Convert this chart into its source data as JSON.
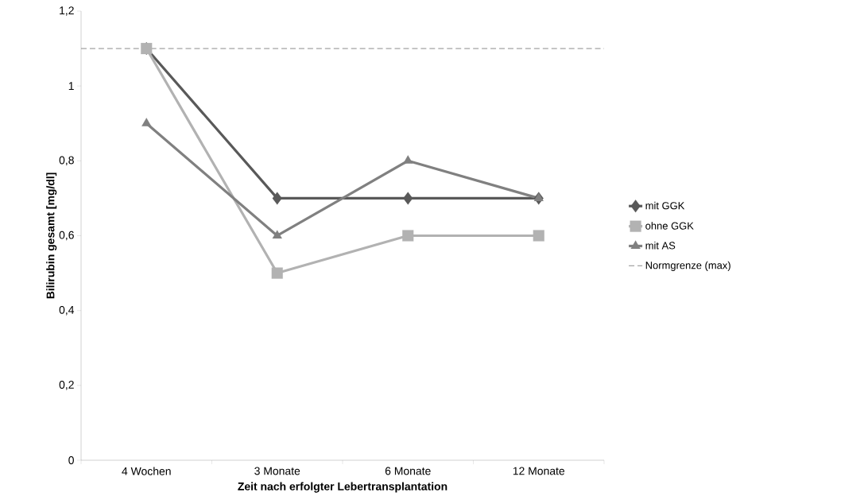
{
  "chart_data": {
    "type": "line",
    "xlabel": "Zeit nach erfolgter Lebertransplantation",
    "ylabel": "Bilirubin gesamt [mg/dl]",
    "categories": [
      "4 Wochen",
      "3 Monate",
      "6 Monate",
      "12 Monate"
    ],
    "series": [
      {
        "name": "mit GGK",
        "color": "#595959",
        "marker": "diamond",
        "values": [
          1.1,
          0.7,
          0.7,
          0.7
        ]
      },
      {
        "name": "ohne GGK",
        "color": "#b2b2b2",
        "marker": "square",
        "values": [
          1.1,
          0.5,
          0.6,
          0.6
        ]
      },
      {
        "name": "mit AS",
        "color": "#808080",
        "marker": "triangle",
        "values": [
          0.9,
          0.6,
          0.8,
          0.7
        ]
      }
    ],
    "ref_lines": [
      {
        "axis": "y",
        "value": 1.1,
        "label": "Normgrenze (max)",
        "color": "#8c8c8c",
        "line_style": "dashed"
      }
    ],
    "ylim": [
      0,
      1.2
    ],
    "yticks": [
      {
        "value": 0,
        "label": "0"
      },
      {
        "value": 0.2,
        "label": "0,2"
      },
      {
        "value": 0.4,
        "label": "0,4"
      },
      {
        "value": 0.6,
        "label": "0,6"
      },
      {
        "value": 0.8,
        "label": "0,8"
      },
      {
        "value": 1,
        "label": "1"
      },
      {
        "value": 1.2,
        "label": "1,2"
      }
    ],
    "grid": false,
    "legend": "right",
    "line_style": "solid"
  }
}
